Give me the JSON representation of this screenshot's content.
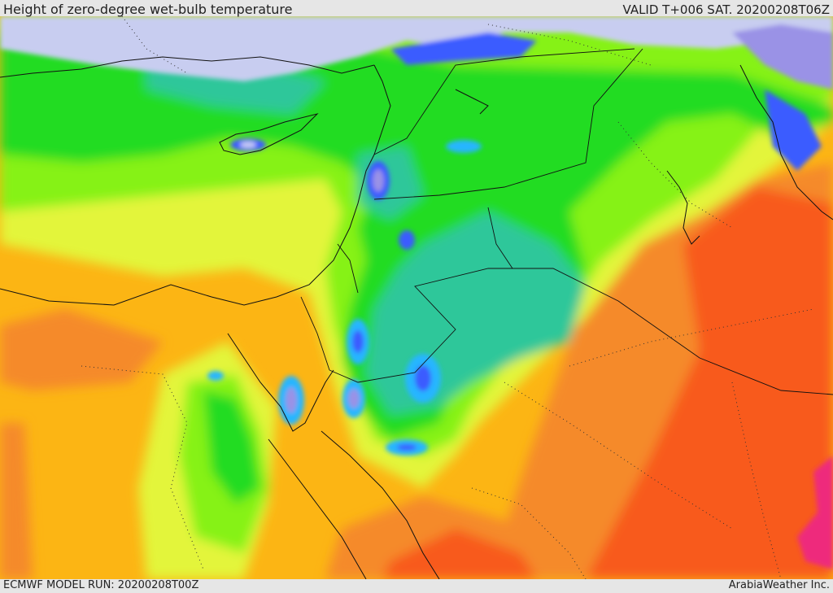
{
  "header": {
    "title": "Height of zero-degree wet-bulb temperature",
    "valid_time": "VALID T+006 SAT. 20200208T06Z"
  },
  "footer": {
    "model_run": "ECMWF MODEL RUN: 20200208T00Z",
    "credit": "ArabiaWeather Inc."
  },
  "colors": {
    "sea_ice": "#c8cdf0",
    "purple": "#9a92e6",
    "blue": "#3b5bff",
    "light_blue": "#25b6ff",
    "teal": "#2fc79a",
    "green": "#22dc22",
    "yellow_green": "#86f218",
    "yellow": "#e3f53a",
    "orange_yellow": "#fcb514",
    "orange": "#f58a2c",
    "red_orange": "#f85a1c",
    "magenta": "#ee2b7c"
  }
}
